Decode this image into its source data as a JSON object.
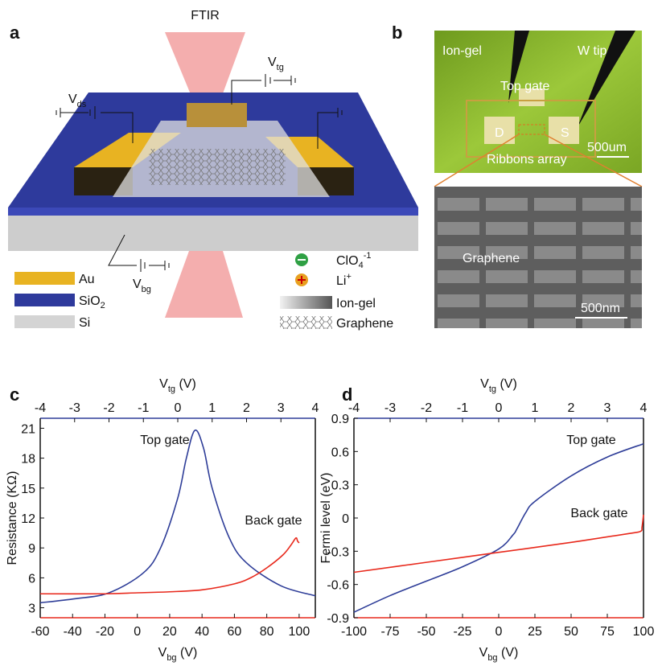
{
  "panel_a": {
    "label": "a",
    "ftir": "FTIR",
    "vtg": {
      "base": "V",
      "sub": "tg"
    },
    "vds": {
      "base": "V",
      "sub": "ds"
    },
    "vbg": {
      "base": "V",
      "sub": "bg"
    },
    "legend": {
      "au": "Au",
      "sio2": {
        "base": "SiO",
        "sub": "2"
      },
      "si": "Si",
      "clo4": {
        "base": "ClO",
        "sub": "4",
        "sup": "-1"
      },
      "li": {
        "base": "Li",
        "sup": "+"
      },
      "iongel": "Ion-gel",
      "graphene": "Graphene"
    }
  },
  "panel_b": {
    "label": "b",
    "iongel": "Ion-gel",
    "wtip": "W tip",
    "topgate": "Top gate",
    "d": "D",
    "s": "S",
    "scale1": "500um",
    "ribbons": "Ribbons array",
    "graphene": "Graphene",
    "scale2": "500nm"
  },
  "chart_data": [
    {
      "type": "line",
      "panel": "c",
      "xlabel": {
        "base": "V",
        "sub": "bg",
        "unit": " (V)"
      },
      "x2label": {
        "base": "V",
        "sub": "tg",
        "unit": " (V)"
      },
      "ylabel": "Resistance (KΩ)",
      "xlim": [
        -60,
        110
      ],
      "xticks": [
        -60,
        -40,
        -20,
        0,
        20,
        40,
        60,
        80,
        100
      ],
      "x2lim": [
        -4,
        4
      ],
      "x2ticks": [
        -4,
        -3,
        -2,
        -1,
        0,
        1,
        2,
        3,
        4
      ],
      "ylim": [
        2,
        22
      ],
      "yticks": [
        3,
        6,
        9,
        12,
        15,
        18,
        21
      ],
      "series": [
        {
          "name": "Top gate",
          "color": "#2e3d98",
          "axis": "x2",
          "x": [
            -4,
            -3,
            -2,
            -1,
            -0.5,
            0,
            0.25,
            0.5,
            0.75,
            1,
            1.5,
            2,
            3,
            4
          ],
          "values": [
            3.5,
            3.9,
            4.5,
            6.5,
            9,
            14,
            18,
            20.8,
            19,
            15,
            10,
            7.5,
            5.2,
            4.2
          ]
        },
        {
          "name": "Back gate",
          "color": "#e8291c",
          "x": [
            -60,
            -20,
            0,
            20,
            40,
            60,
            70,
            80,
            90,
            95,
            98,
            99,
            100
          ],
          "values": [
            4.4,
            4.4,
            4.5,
            4.6,
            4.8,
            5.4,
            6,
            7,
            8.3,
            9.3,
            10,
            9.7,
            9.5
          ]
        }
      ]
    },
    {
      "type": "line",
      "panel": "d",
      "xlabel": {
        "base": "V",
        "sub": "bg",
        "unit": " (V)"
      },
      "x2label": {
        "base": "V",
        "sub": "tg",
        "unit": " (V)"
      },
      "ylabel": "Fermi level (eV)",
      "xlim": [
        -100,
        100
      ],
      "xticks": [
        -100,
        -75,
        -50,
        -25,
        0,
        25,
        50,
        75,
        100
      ],
      "x2lim": [
        -4,
        4
      ],
      "x2ticks": [
        -4,
        -3,
        -2,
        -1,
        0,
        1,
        2,
        3,
        4
      ],
      "ylim": [
        -0.9,
        0.9
      ],
      "yticks": [
        -0.9,
        -0.6,
        -0.3,
        0,
        0.3,
        0.6,
        0.9
      ],
      "series": [
        {
          "name": "Top gate",
          "color": "#2e3d98",
          "axis": "x2",
          "x": [
            -4,
            -3,
            -2,
            -1,
            0,
            0.4,
            0.5,
            0.75,
            1,
            2,
            3,
            4
          ],
          "values": [
            -0.85,
            -0.7,
            -0.57,
            -0.44,
            -0.28,
            -0.15,
            -0.1,
            0.05,
            0.15,
            0.38,
            0.55,
            0.67
          ]
        },
        {
          "name": "Back gate",
          "color": "#e8291c",
          "x": [
            -100,
            -50,
            0,
            50,
            90,
            98,
            99,
            100
          ],
          "values": [
            -0.49,
            -0.4,
            -0.31,
            -0.22,
            -0.14,
            -0.12,
            -0.08,
            0.03
          ]
        }
      ]
    }
  ]
}
